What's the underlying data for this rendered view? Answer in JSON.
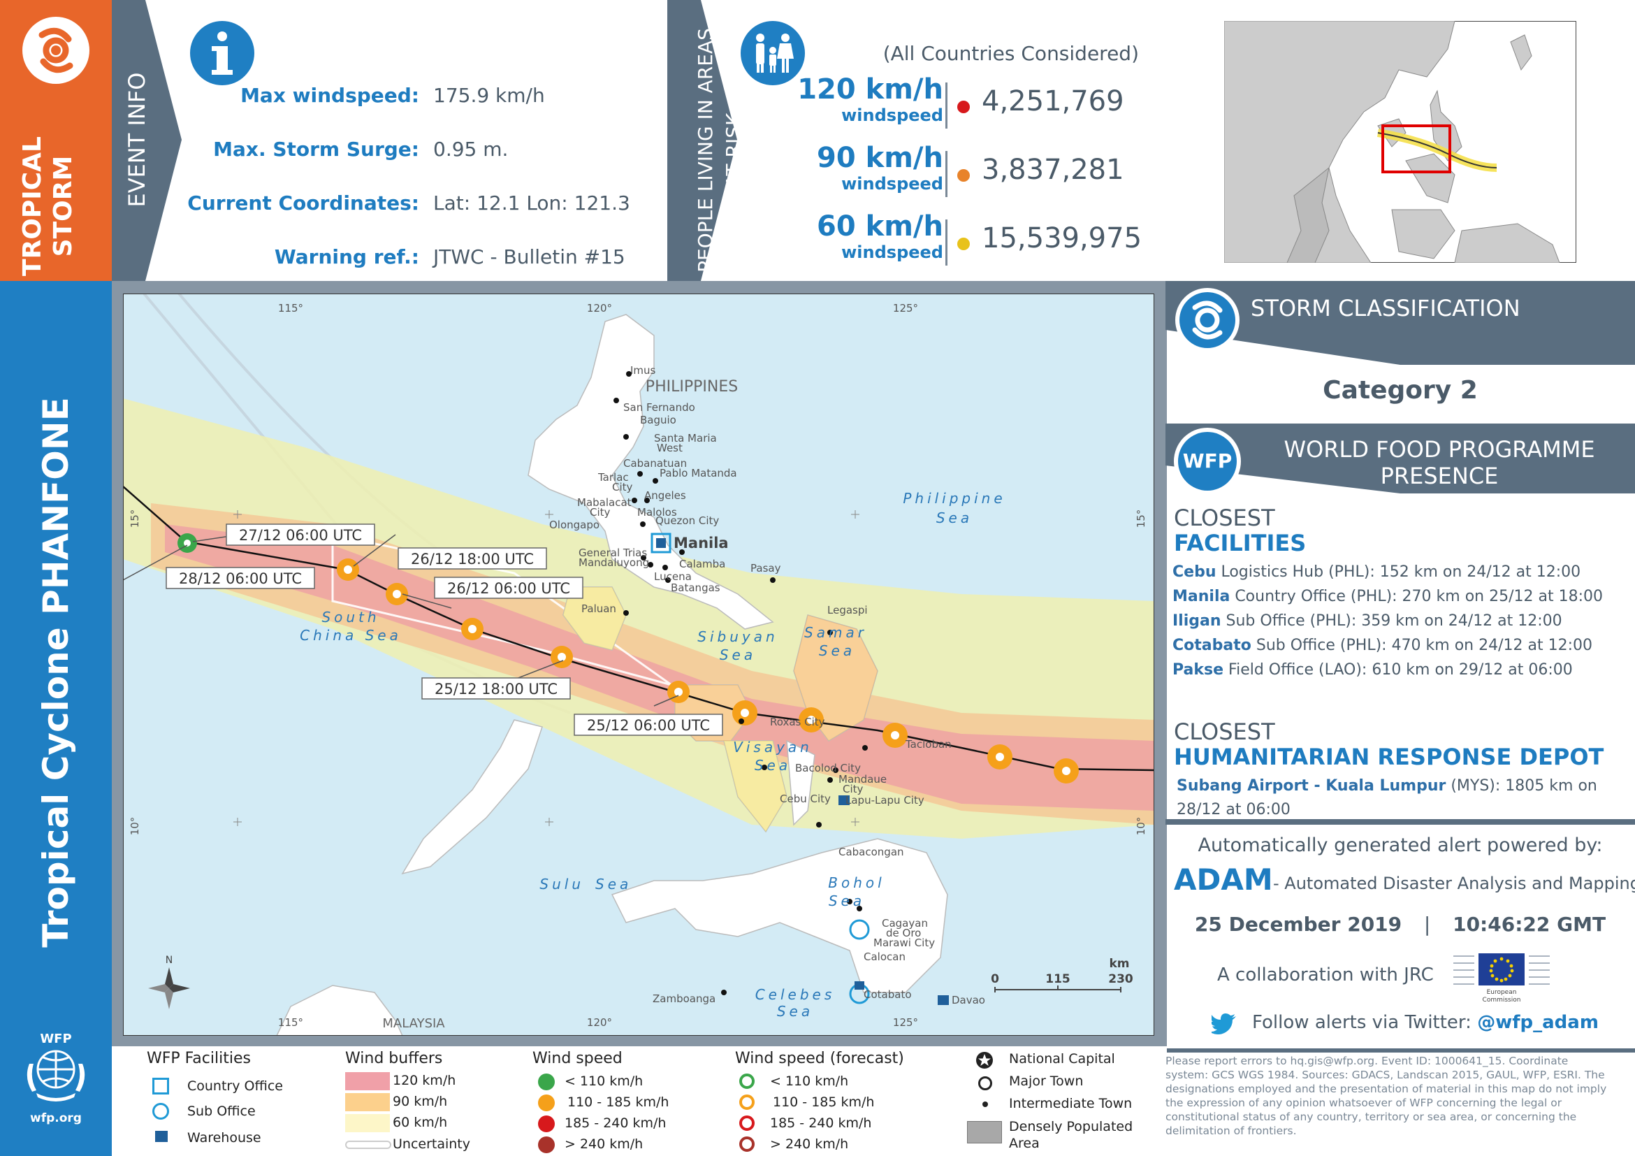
{
  "left_bar": {
    "storm_type": "TROPICAL STORM",
    "cyclone_name": "Tropical Cyclone PHANFONE",
    "wfp_logo_text": "WFP",
    "wfp_url": "wfp.org"
  },
  "event_info": {
    "section_label": "EVENT INFO",
    "rows": [
      {
        "label": "Max windspeed:",
        "value": "175.9 km/h"
      },
      {
        "label": "Max. Storm Surge:",
        "value": "0.95 m."
      },
      {
        "label": "Current Coordinates:",
        "value": "Lat: 12.1 Lon: 121.3"
      },
      {
        "label": "Warning ref.:",
        "value": "JTWC - Bulletin #15"
      }
    ]
  },
  "people_at_risk": {
    "section_label_1": "PEOPLE LIVING IN AREAS",
    "section_label_2": "AT RISK",
    "note": "(All Countries Considered)",
    "rows": [
      {
        "speed": "120 km/h",
        "sub": "windspeed",
        "value": "4,251,769",
        "color": "#d7191c"
      },
      {
        "speed": "90 km/h",
        "sub": "windspeed",
        "value": "3,837,281",
        "color": "#e8832a"
      },
      {
        "speed": "60 km/h",
        "sub": "windspeed",
        "value": "15,539,975",
        "color": "#e8c21a"
      }
    ]
  },
  "storm_classification": {
    "title": "STORM CLASSIFICATION",
    "category": "Category 2"
  },
  "wfp_presence": {
    "badge": "WFP",
    "title_line1": "WORLD FOOD PROGRAMME",
    "title_line2": "PRESENCE",
    "closest_label": "CLOSEST",
    "facilities_label": "FACILITIES",
    "facilities": [
      {
        "name": "Cebu",
        "rest": " Logistics Hub (PHL): 152 km on 24/12 at 12:00"
      },
      {
        "name": "Manila",
        "rest": " Country Office (PHL): 270 km on 25/12 at 18:00"
      },
      {
        "name": "Iligan",
        "rest": " Sub Office (PHL): 359 km on 24/12 at 12:00"
      },
      {
        "name": "Cotabato",
        "rest": " Sub Office (PHL): 470 km on 24/12 at 12:00"
      },
      {
        "name": "Pakse",
        "rest": " Field Office (LAO): 610 km on 29/12 at 06:00"
      }
    ],
    "depot_closest_label": "CLOSEST",
    "depot_label": "HUMANITARIAN RESPONSE DEPOT",
    "depot_name": "Subang Airport - Kuala Lumpur",
    "depot_rest_1": " (MYS): 1805 km on",
    "depot_rest_2": "28/12 at 06:00"
  },
  "footer_info": {
    "powered_by": "Automatically generated alert powered by:",
    "adam": "ADAM",
    "adam_desc": "- Automated Disaster Analysis and Mapping",
    "date": "25 December 2019",
    "separator": "|",
    "time": "10:46:22 GMT",
    "collab": "A collaboration with JRC",
    "ec_text_1": "European",
    "ec_text_2": "Commission",
    "twitter_text": "Follow alerts via Twitter:",
    "twitter_handle": "@wfp_adam",
    "disclaimer": "Please report errors to hq.gis@wfp.org. Event ID: 1000641_15. Coordinate system: GCS WGS 1984. Sources: GDACS, Landscan 2015, GAUL, WFP, ESRI. The designations employed and the presentation of material in this map do not imply the expression of any opinion whatsoever of WFP concerning the legal or constitutional status of any country, territory or sea area, or concerning the delimitation of frontiers."
  },
  "map": {
    "lon_labels": [
      "115°",
      "120°",
      "125°"
    ],
    "lat_labels": [
      "15°",
      "10°"
    ],
    "country_labels": [
      "PHILIPPINES",
      "MALAYSIA"
    ],
    "seas": [
      {
        "line1": "Philippine",
        "line2": "Sea"
      },
      {
        "line1": "South",
        "line2": "China Sea"
      },
      {
        "line1": "Sibuyan",
        "line2": "Sea"
      },
      {
        "line1": "Samar",
        "line2": "Sea"
      },
      {
        "line1": "Visayan",
        "line2": "Sea"
      },
      {
        "line1": "Sulu",
        "line2": "Sea"
      },
      {
        "line1": "Bohol",
        "line2": "Sea"
      },
      {
        "line1": "Celebes",
        "line2": "Sea"
      }
    ],
    "capital": "Manila",
    "towns": [
      "Imus",
      "San Fernando",
      "Baguio",
      "Santa Maria",
      "West",
      "Cabanatuan",
      "Pablo Matanda",
      "Tarlac",
      "City",
      "Angeles",
      "Mabalacat",
      "City",
      "Malolos",
      "Quezon City",
      "Olongapo",
      "General Trias",
      "Mandaluyong",
      "Calamba",
      "Lucena",
      "Batangas",
      "Pasay",
      "Legaspi",
      "Paluan",
      "Roxas City",
      "Tacloban",
      "Bacolod City",
      "Mandaue",
      "City",
      "Cebu City",
      "Lapu-Lapu City",
      "Cabacongan",
      "Cagayan",
      "de Oro",
      "Marawi City",
      "Calocan",
      "Cotabato",
      "Davao",
      "Zamboanga"
    ],
    "track_labels": [
      "27/12 06:00 UTC",
      "28/12 06:00 UTC",
      "26/12 18:00 UTC",
      "26/12 06:00 UTC",
      "25/12 18:00 UTC",
      "25/12 06:00 UTC"
    ],
    "scale_ticks": [
      "0",
      "115",
      "230"
    ],
    "scale_unit": "km",
    "north_letter": "N"
  },
  "legend": {
    "facilities": {
      "title": "WFP Facilities",
      "items": [
        "Country Office",
        "Sub Office",
        "Warehouse"
      ]
    },
    "wind_buffers": {
      "title": "Wind buffers",
      "items": [
        {
          "label": "120 km/h",
          "color": "#f0a0a8"
        },
        {
          "label": "90 km/h",
          "color": "#fcd08c"
        },
        {
          "label": "60 km/h",
          "color": "#fdf6c8"
        },
        {
          "label": "Uncertainty",
          "color": "#cccccc"
        }
      ]
    },
    "wind_speed": {
      "title": "Wind speed",
      "items": [
        {
          "label": "< 110 km/h",
          "color": "#3aa64a"
        },
        {
          "label": "110 - 185 km/h",
          "color": "#f5a01a"
        },
        {
          "label": "185 - 240 km/h",
          "color": "#d7191c"
        },
        {
          "label": "> 240 km/h",
          "color": "#a8322a"
        }
      ]
    },
    "wind_speed_forecast": {
      "title": "Wind speed (forecast)",
      "items": [
        {
          "label": "< 110 km/h",
          "color": "#3aa64a"
        },
        {
          "label": "110 - 185 km/h",
          "color": "#f5a01a"
        },
        {
          "label": "185 - 240 km/h",
          "color": "#d7191c"
        },
        {
          "label": "> 240 km/h",
          "color": "#a8322a"
        }
      ]
    },
    "towns": {
      "items": [
        "National Capital",
        "Major Town",
        "Intermediate Town",
        "Densely Populated",
        "Area"
      ]
    }
  }
}
